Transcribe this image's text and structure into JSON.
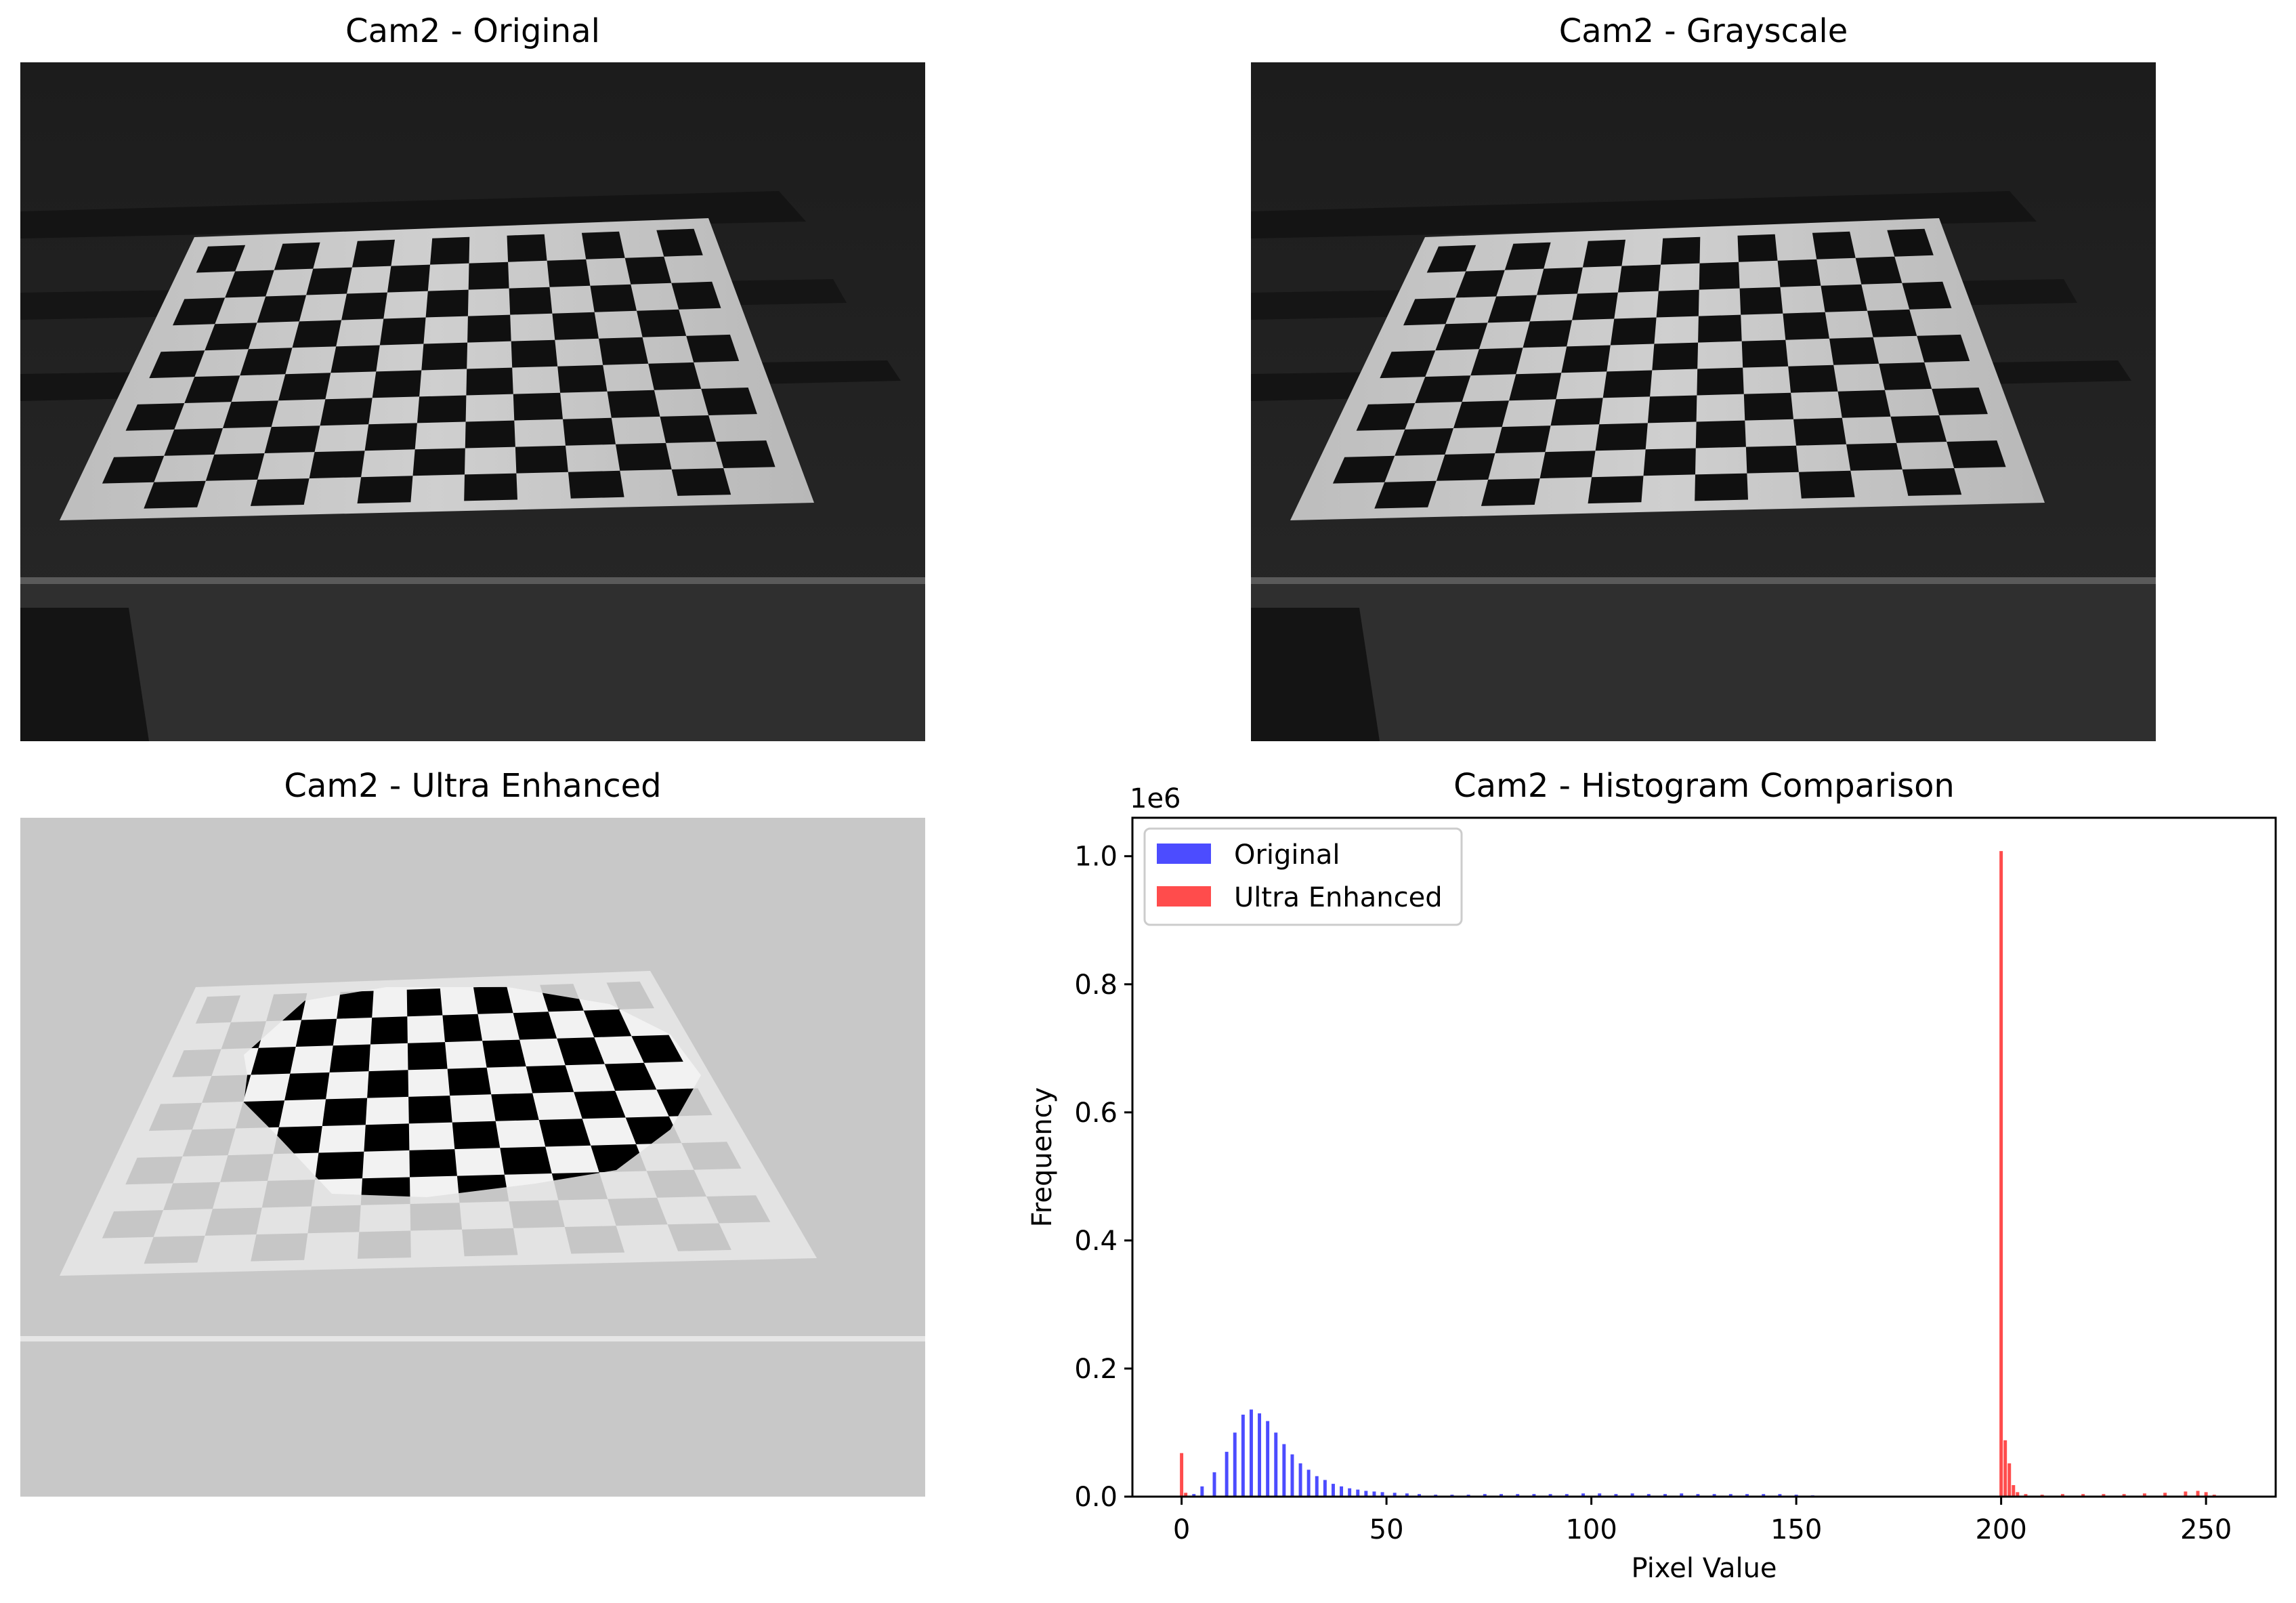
{
  "panels": {
    "original_title": "Cam2 - Original",
    "grayscale_title": "Cam2 - Grayscale",
    "enhanced_title": "Cam2 - Ultra Enhanced",
    "histogram_title": "Cam2 - Histogram Comparison"
  },
  "chart_data": {
    "type": "bar",
    "title": "Cam2 - Histogram Comparison",
    "xlabel": "Pixel Value",
    "ylabel": "Frequency",
    "y_scale_label": "1e6",
    "xlim": [
      -12,
      267
    ],
    "ylim": [
      0,
      1.06
    ],
    "x_ticks": [
      0,
      50,
      100,
      150,
      200,
      250
    ],
    "y_ticks": [
      0.0,
      0.2,
      0.4,
      0.6,
      0.8,
      1.0
    ],
    "y_tick_labels": [
      "0.0",
      "0.2",
      "0.4",
      "0.6",
      "0.8",
      "1.0"
    ],
    "legend": "top-left",
    "grid": false,
    "series": [
      {
        "name": "Original",
        "color": "#0000ff",
        "points": [
          [
            3,
            0.004
          ],
          [
            5,
            0.016
          ],
          [
            8,
            0.038
          ],
          [
            11,
            0.07
          ],
          [
            13,
            0.1
          ],
          [
            15,
            0.128
          ],
          [
            17,
            0.136
          ],
          [
            19,
            0.13
          ],
          [
            21,
            0.118
          ],
          [
            23,
            0.1
          ],
          [
            25,
            0.082
          ],
          [
            27,
            0.066
          ],
          [
            29,
            0.052
          ],
          [
            31,
            0.042
          ],
          [
            33,
            0.032
          ],
          [
            35,
            0.026
          ],
          [
            37,
            0.02
          ],
          [
            39,
            0.016
          ],
          [
            41,
            0.013
          ],
          [
            43,
            0.011
          ],
          [
            45,
            0.009
          ],
          [
            47,
            0.008
          ],
          [
            49,
            0.007
          ],
          [
            52,
            0.006
          ],
          [
            55,
            0.005
          ],
          [
            58,
            0.004
          ],
          [
            62,
            0.003
          ],
          [
            66,
            0.003
          ],
          [
            70,
            0.003
          ],
          [
            74,
            0.004
          ],
          [
            78,
            0.004
          ],
          [
            82,
            0.004
          ],
          [
            86,
            0.004
          ],
          [
            90,
            0.004
          ],
          [
            94,
            0.004
          ],
          [
            98,
            0.005
          ],
          [
            102,
            0.005
          ],
          [
            106,
            0.004
          ],
          [
            110,
            0.005
          ],
          [
            114,
            0.004
          ],
          [
            118,
            0.004
          ],
          [
            122,
            0.005
          ],
          [
            126,
            0.004
          ],
          [
            130,
            0.004
          ],
          [
            134,
            0.004
          ],
          [
            138,
            0.004
          ],
          [
            142,
            0.004
          ],
          [
            146,
            0.004
          ],
          [
            150,
            0.003
          ],
          [
            154,
            0.002
          ],
          [
            158,
            0.001
          ]
        ]
      },
      {
        "name": "Ultra Enhanced",
        "color": "#ff0000",
        "points": [
          [
            0,
            0.068
          ],
          [
            1,
            0.006
          ],
          [
            200,
            1.008
          ],
          [
            201,
            0.088
          ],
          [
            202,
            0.052
          ],
          [
            203,
            0.018
          ],
          [
            204,
            0.007
          ],
          [
            206,
            0.004
          ],
          [
            210,
            0.003
          ],
          [
            215,
            0.004
          ],
          [
            220,
            0.004
          ],
          [
            225,
            0.004
          ],
          [
            230,
            0.004
          ],
          [
            235,
            0.005
          ],
          [
            240,
            0.006
          ],
          [
            245,
            0.008
          ],
          [
            248,
            0.009
          ],
          [
            250,
            0.007
          ],
          [
            252,
            0.003
          ]
        ]
      }
    ]
  }
}
